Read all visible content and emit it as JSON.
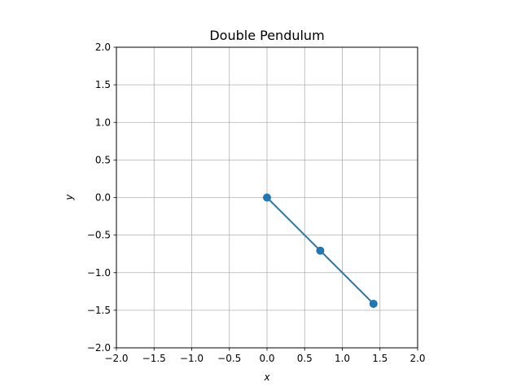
{
  "chart_data": {
    "type": "line",
    "title": "Double Pendulum",
    "xlabel": "x",
    "ylabel": "y",
    "xlim": [
      -2.0,
      2.0
    ],
    "ylim": [
      -2.0,
      2.0
    ],
    "grid": true,
    "xticks": [
      -2.0,
      -1.5,
      -1.0,
      -0.5,
      0.0,
      0.5,
      1.0,
      1.5,
      2.0
    ],
    "yticks": [
      -2.0,
      -1.5,
      -1.0,
      -0.5,
      0.0,
      0.5,
      1.0,
      1.5,
      2.0
    ],
    "xtick_labels": [
      "−2.0",
      "−1.5",
      "−1.0",
      "−0.5",
      "0.0",
      "0.5",
      "1.0",
      "1.5",
      "2.0"
    ],
    "ytick_labels": [
      "−2.0",
      "−1.5",
      "−1.0",
      "−0.5",
      "0.0",
      "0.5",
      "1.0",
      "1.5",
      "2.0"
    ],
    "series": [
      {
        "x": [
          0.0,
          0.707,
          1.414
        ],
        "y": [
          0.0,
          -0.707,
          -1.414
        ],
        "color": "#1f77b4",
        "marker": "o"
      }
    ]
  }
}
